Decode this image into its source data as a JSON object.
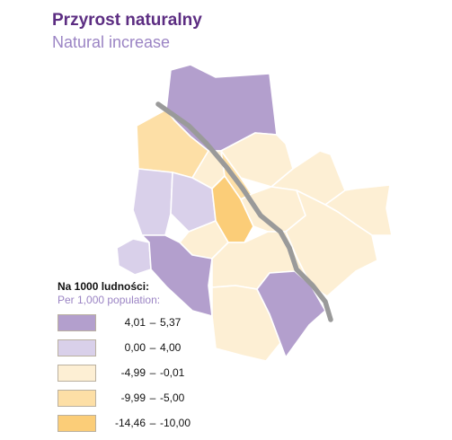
{
  "title": {
    "pl": "Przyrost naturalny",
    "en": "Natural increase"
  },
  "legend": {
    "title_pl": "Na 1000 ludności:",
    "title_en": "Per 1,000 population:",
    "classes": [
      {
        "lo": "4,01",
        "hi": "5,37",
        "color": "#b39fcd"
      },
      {
        "lo": "0,00",
        "hi": "4,00",
        "color": "#d9d0ea"
      },
      {
        "lo": "-4,99",
        "hi": "-0,01",
        "color": "#fdefd4"
      },
      {
        "lo": "-9,99",
        "hi": "-5,00",
        "color": "#fddfa6"
      },
      {
        "lo": "-14,46",
        "hi": "-10,00",
        "color": "#fbcd78"
      }
    ]
  },
  "map": {
    "river": "#9a9a9a",
    "border": "#ffffff"
  }
}
